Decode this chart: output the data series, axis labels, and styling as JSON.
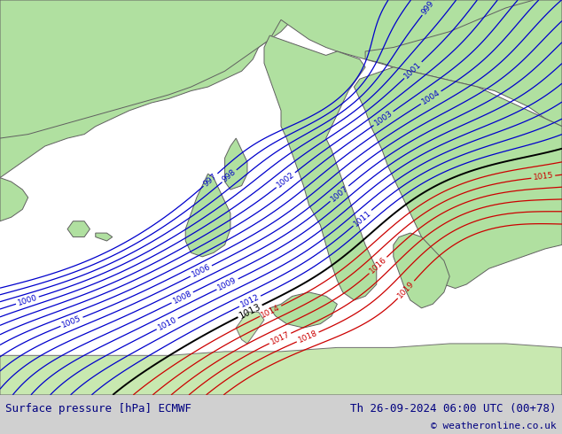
{
  "title_left": "Surface pressure [hPa] ECMWF",
  "title_right": "Th 26-09-2024 06:00 UTC (00+78)",
  "copyright": "© weatheronline.co.uk",
  "land_color": "#b0e0a0",
  "sea_color": "#d0d8e8",
  "footer_bg": "#d0d0d0",
  "blue_color": "#0000cc",
  "red_color": "#cc0000",
  "black_color": "#000000",
  "gray_border": "#808080",
  "footer_text_color": "#000080",
  "figsize": [
    6.34,
    4.9
  ],
  "dpi": 100
}
